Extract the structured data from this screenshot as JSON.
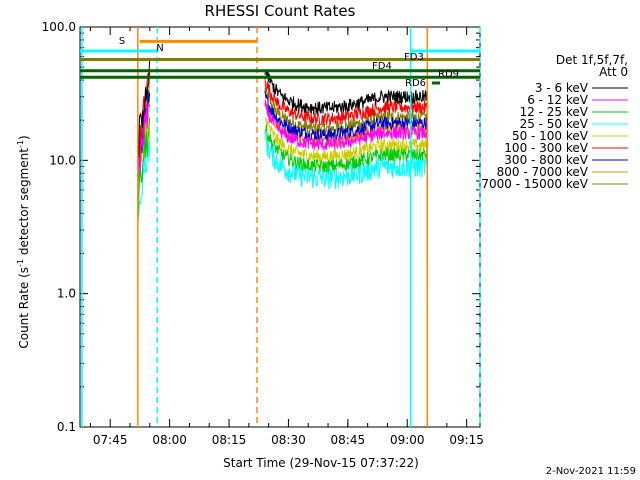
{
  "chart_data": {
    "type": "line",
    "title": "RHESSI Count Rates",
    "xlabel": "Start Time (29-Nov-15 07:37:22)",
    "ylabel_main": "Count Rate (s",
    "ylabel_sup": "-1",
    "ylabel_mid": " detector segment",
    "ylabel_sup2": "-1",
    "ylabel_end": ")",
    "xlim_minutes": [
      0,
      101
    ],
    "ylim": [
      0.1,
      100.0
    ],
    "yscale": "log",
    "x_ticks": [
      {
        "label": "07:45",
        "minute": 7.63
      },
      {
        "label": "08:00",
        "minute": 22.63
      },
      {
        "label": "08:15",
        "minute": 37.63
      },
      {
        "label": "08:30",
        "minute": 52.63
      },
      {
        "label": "08:45",
        "minute": 67.63
      },
      {
        "label": "09:00",
        "minute": 82.63
      },
      {
        "label": "09:15",
        "minute": 97.63
      }
    ],
    "y_ticks": [
      {
        "label": "100.0",
        "value": 100
      },
      {
        "label": "10.0",
        "value": 10
      },
      {
        "label": "1.0",
        "value": 1
      },
      {
        "label": "0.1",
        "value": 0.1
      }
    ],
    "legend_header": [
      "Det 1f,5f,7f,",
      "Att 0"
    ],
    "legend_placement": "right",
    "series": [
      {
        "name": "3 - 6 keV",
        "color": "#000000",
        "level": 30,
        "noise": 0.05
      },
      {
        "name": "6 - 12 keV",
        "color": "#ff00ff",
        "level": 16,
        "noise": 0.05
      },
      {
        "name": "12 - 25 keV",
        "color": "#00cc00",
        "level": 11,
        "noise": 0.05
      },
      {
        "name": "25 - 50 keV",
        "color": "#00ffff",
        "level": 9,
        "noise": 0.09
      },
      {
        "name": "50 - 100 keV",
        "color": "#cccc00",
        "level": 13,
        "noise": 0.05
      },
      {
        "name": "100 - 300 keV",
        "color": "#ff0000",
        "level": 25,
        "noise": 0.05
      },
      {
        "name": "300 - 800 keV",
        "color": "#0000cc",
        "level": 19,
        "noise": 0.05
      },
      {
        "name": "800 - 7000 keV",
        "color": "#ff8800",
        "level": 17,
        "noise": 0.05
      },
      {
        "name": "7000 - 15000 keV",
        "color": "#808000",
        "level": 21,
        "noise": 0.05
      }
    ],
    "flags": [
      {
        "label": "S",
        "color": "#ff8800",
        "y": 78,
        "start": 15.1,
        "end": 44.7
      },
      {
        "label": "N",
        "color": "#00ffff",
        "y": 66,
        "start": 0,
        "end": 19.5
      },
      {
        "label": "FD3",
        "color": "#00ffff",
        "y": 66,
        "start": 83.5,
        "end": 101
      },
      {
        "label": "FD4",
        "color": "#808000",
        "y": 57,
        "start": 0,
        "end": 101
      },
      {
        "label": "RD9",
        "color": "#006400",
        "y": 47,
        "start": 0,
        "end": 101
      },
      {
        "label": "RD6",
        "color": "#006400",
        "y": 42,
        "start": 0,
        "end": 101
      }
    ],
    "vertical_lines": [
      {
        "minute": 0.5,
        "color": "#00ffff",
        "style": "solid"
      },
      {
        "minute": 14.6,
        "color": "#ff8800",
        "style": "solid"
      },
      {
        "minute": 19.5,
        "color": "#00ffff",
        "style": "dashed"
      },
      {
        "minute": 44.7,
        "color": "#ff8800",
        "style": "dashed"
      },
      {
        "minute": 83.5,
        "color": "#00ffff",
        "style": "solid"
      },
      {
        "minute": 87.7,
        "color": "#ff8800",
        "style": "solid"
      },
      {
        "minute": 101.0,
        "color": "#00ffff",
        "style": "dashed"
      }
    ],
    "data_segments": [
      {
        "start": 14.6,
        "end": 17.6,
        "kind": "spike"
      },
      {
        "start": 46.7,
        "end": 87.7,
        "kind": "main"
      }
    ],
    "footer_date": "2-Nov-2021 11:59"
  }
}
